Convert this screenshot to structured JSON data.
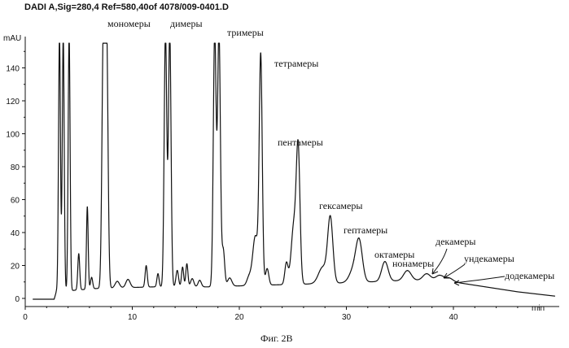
{
  "header": {
    "text": "DADI A,Sig=280,4 Ref=580,40of 4078/009-0401.D"
  },
  "caption": "Фиг. 2B",
  "chart_data": {
    "type": "line",
    "title": "",
    "ylabel": "mAU",
    "xlabel": "min",
    "xlim": [
      0,
      49.5
    ],
    "ylim": [
      -4,
      155
    ],
    "x_ticks": [
      0,
      10,
      20,
      30,
      40
    ],
    "y_ticks": [
      0,
      20,
      40,
      60,
      80,
      100,
      120,
      140
    ],
    "grid": false,
    "baseline": [
      [
        0.7,
        -0.5
      ],
      [
        2.7,
        -0.5
      ],
      [
        2.9,
        4
      ],
      [
        6.6,
        6
      ],
      [
        12,
        7
      ],
      [
        17,
        7
      ],
      [
        22,
        8
      ],
      [
        28,
        9
      ],
      [
        32,
        10
      ],
      [
        36,
        11
      ],
      [
        39,
        11
      ],
      [
        42,
        8
      ],
      [
        46,
        4
      ],
      [
        50,
        1
      ]
    ],
    "peaks": [
      {
        "x": 3.2,
        "y": 155,
        "w": 0.09
      },
      {
        "x": 3.55,
        "y": 155,
        "w": 0.09
      },
      {
        "x": 4.1,
        "y": 155,
        "w": 0.09
      },
      {
        "x": 5.0,
        "y": 22,
        "w": 0.09
      },
      {
        "x": 5.8,
        "y": 50,
        "w": 0.08
      },
      {
        "x": 6.2,
        "y": 7,
        "w": 0.1
      },
      {
        "x": 7.3,
        "y": 155,
        "w": 0.13
      },
      {
        "x": 7.6,
        "y": 155,
        "w": 0.13
      },
      {
        "x": 8.6,
        "y": 4,
        "w": 0.2
      },
      {
        "x": 9.6,
        "y": 5,
        "w": 0.2
      },
      {
        "x": 11.3,
        "y": 13,
        "w": 0.1
      },
      {
        "x": 12.4,
        "y": 8,
        "w": 0.1
      },
      {
        "x": 13.1,
        "y": 155,
        "w": 0.12
      },
      {
        "x": 13.5,
        "y": 155,
        "w": 0.12
      },
      {
        "x": 14.2,
        "y": 10,
        "w": 0.12
      },
      {
        "x": 14.7,
        "y": 12,
        "w": 0.1
      },
      {
        "x": 15.1,
        "y": 14,
        "w": 0.1
      },
      {
        "x": 15.6,
        "y": 5,
        "w": 0.15
      },
      {
        "x": 16.3,
        "y": 4,
        "w": 0.15
      },
      {
        "x": 17.7,
        "y": 155,
        "w": 0.13
      },
      {
        "x": 18.1,
        "y": 155,
        "w": 0.13
      },
      {
        "x": 18.5,
        "y": 22,
        "w": 0.13
      },
      {
        "x": 19.1,
        "y": 5,
        "w": 0.2
      },
      {
        "x": 20.9,
        "y": 5,
        "w": 0.2
      },
      {
        "x": 21.5,
        "y": 30,
        "w": 0.25
      },
      {
        "x": 22.0,
        "y": 137,
        "w": 0.14
      },
      {
        "x": 22.6,
        "y": 10,
        "w": 0.15
      },
      {
        "x": 24.4,
        "y": 13,
        "w": 0.15
      },
      {
        "x": 25.1,
        "y": 36,
        "w": 0.25
      },
      {
        "x": 25.5,
        "y": 77,
        "w": 0.17
      },
      {
        "x": 27.8,
        "y": 10,
        "w": 0.4
      },
      {
        "x": 28.5,
        "y": 39,
        "w": 0.24
      },
      {
        "x": 30.7,
        "y": 8,
        "w": 0.4
      },
      {
        "x": 31.2,
        "y": 23,
        "w": 0.3
      },
      {
        "x": 33.6,
        "y": 12,
        "w": 0.3
      },
      {
        "x": 35.7,
        "y": 6,
        "w": 0.35
      },
      {
        "x": 37.5,
        "y": 4,
        "w": 0.35
      },
      {
        "x": 38.7,
        "y": 3,
        "w": 0.35
      },
      {
        "x": 39.6,
        "y": 2,
        "w": 0.35
      }
    ],
    "annotations": [
      {
        "text": "мономеры"
      },
      {
        "text": "димеры"
      },
      {
        "text": "тримеры"
      },
      {
        "text": "тетрамеры"
      },
      {
        "text": "пентамеры"
      },
      {
        "text": "гексамеры"
      },
      {
        "text": "гептамеры"
      },
      {
        "text": "октамеры"
      },
      {
        "text": "нонамеры"
      },
      {
        "text": "декамеры"
      },
      {
        "text": "ундекамеры"
      },
      {
        "text": "додекамеры"
      }
    ]
  }
}
